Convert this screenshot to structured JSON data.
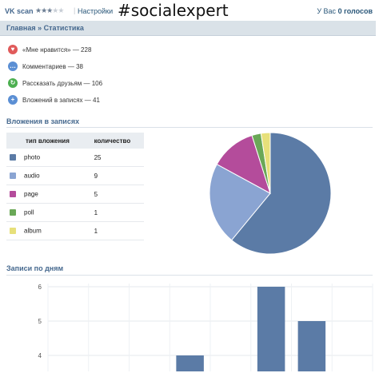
{
  "topbar": {
    "app_name": "VK scan",
    "rating": 3,
    "rating_max": 5,
    "settings_link": "Настройки",
    "hashtag": "#socialexpert",
    "balance_prefix": "У Вас",
    "balance_value": "0 голосов"
  },
  "breadcrumb": "Главная » Статистика",
  "stats": [
    {
      "icon": "heart-icon",
      "color": "#e05a5a",
      "glyph": "♥",
      "text": "«Мне нравится» — 228"
    },
    {
      "icon": "comment-icon",
      "color": "#5b8fd4",
      "glyph": "…",
      "text": "Комментариев — 38"
    },
    {
      "icon": "share-icon",
      "color": "#4caf50",
      "glyph": "↻",
      "text": "Рассказать друзьям — 106"
    },
    {
      "icon": "attachment-icon",
      "color": "#5b8fd4",
      "glyph": "+",
      "text": "Вложений в записях — 41"
    }
  ],
  "attachments_title": "Вложения в записях",
  "attachments_table": {
    "headers": [
      "тип вложения",
      "количество"
    ],
    "rows": [
      {
        "type": "photo",
        "count": "25",
        "color": "#5b7ba6"
      },
      {
        "type": "audio",
        "count": "9",
        "color": "#8aa4d2"
      },
      {
        "type": "page",
        "count": "5",
        "color": "#b44c9b"
      },
      {
        "type": "poll",
        "count": "1",
        "color": "#6aa857"
      },
      {
        "type": "album",
        "count": "1",
        "color": "#e7e07a"
      }
    ]
  },
  "posts_by_day_title": "Записи по дням",
  "chart_data": [
    {
      "type": "pie",
      "labels": [
        "photo",
        "audio",
        "page",
        "poll",
        "album"
      ],
      "values": [
        25,
        9,
        5,
        1,
        1
      ],
      "colors": [
        "#5b7ba6",
        "#8aa4d2",
        "#b44c9b",
        "#6aa857",
        "#e7e07a"
      ]
    },
    {
      "type": "bar",
      "categories": [
        "",
        "",
        "",
        "",
        "",
        "",
        "",
        ""
      ],
      "values": [
        null,
        null,
        null,
        4,
        null,
        6,
        5,
        null
      ],
      "ylim": [
        3.6,
        6
      ],
      "yticks": [
        "6",
        "5",
        "4"
      ],
      "grid": true,
      "color": "#5b7ba6"
    }
  ]
}
